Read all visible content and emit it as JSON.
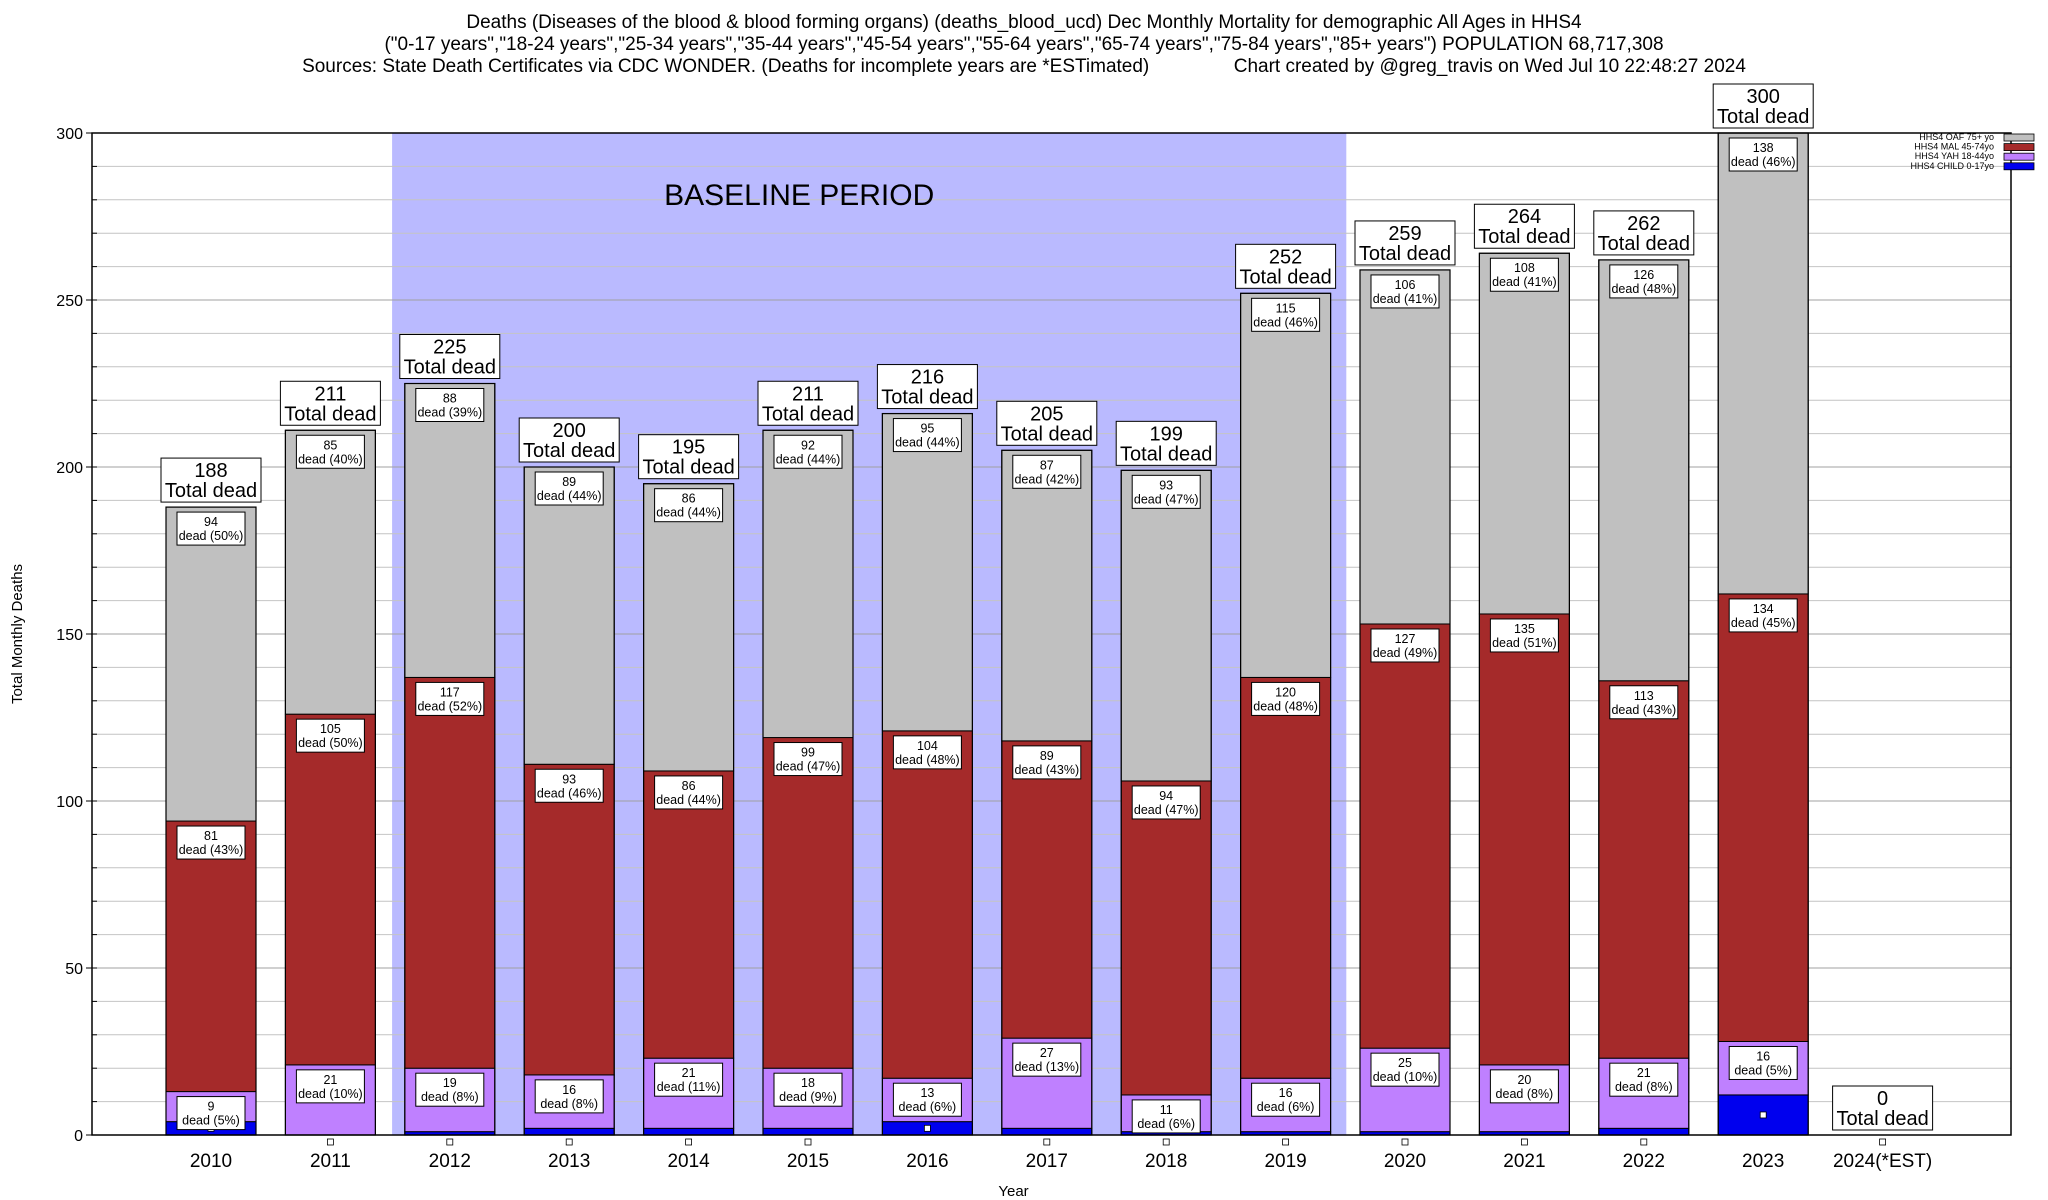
{
  "title": {
    "line1": "Deaths (Diseases of the blood & blood forming organs) (deaths_blood_ucd) Dec Monthly Mortality for demographic All Ages in HHS4",
    "line2": "(\"0-17 years\",\"18-24 years\",\"25-34 years\",\"35-44 years\",\"45-54 years\",\"55-64 years\",\"65-74 years\",\"75-84 years\",\"85+ years\") POPULATION 68,717,308",
    "line3": "Sources: State Death Certificates via CDC WONDER. (Deaths for incomplete years are *ESTimated)                Chart created by @greg_travis on Wed Jul 10 22:48:27 2024"
  },
  "chart_data": {
    "type": "bar",
    "stacked": true,
    "xlabel": "Year",
    "ylabel": "Total Monthly Deaths",
    "ylim": [
      0,
      300
    ],
    "yticks": [
      0,
      50,
      100,
      150,
      200,
      250,
      300
    ],
    "grid": true,
    "legend_position": "top-right",
    "annotation": "BASELINE PERIOD",
    "baseline_years": [
      "2012",
      "2019"
    ],
    "total_suffix": "Total dead",
    "segment_suffix": "dead",
    "categories": [
      "2010",
      "2011",
      "2012",
      "2013",
      "2014",
      "2015",
      "2016",
      "2017",
      "2018",
      "2019",
      "2020",
      "2021",
      "2022",
      "2023",
      "2024(*EST)"
    ],
    "totals": [
      188,
      211,
      225,
      200,
      195,
      211,
      216,
      205,
      199,
      252,
      259,
      264,
      262,
      300,
      0
    ],
    "series": [
      {
        "name": "HHS4 CHILD 0-17yo",
        "color": "#0000ee",
        "values": [
          4,
          0,
          1,
          2,
          2,
          2,
          4,
          2,
          1,
          1,
          1,
          1,
          2,
          12,
          0
        ],
        "labeled": false
      },
      {
        "name": "HHS4 YAH 18-44yo",
        "color": "#bf80ff",
        "values": [
          9,
          21,
          19,
          16,
          21,
          18,
          13,
          27,
          11,
          16,
          25,
          20,
          21,
          16,
          0
        ],
        "pct": [
          5,
          10,
          8,
          8,
          11,
          9,
          6,
          13,
          6,
          6,
          10,
          8,
          8,
          5,
          0
        ],
        "labeled": true
      },
      {
        "name": "HHS4 MAL 45-74yo",
        "color": "#a52a2a",
        "values": [
          81,
          105,
          117,
          93,
          86,
          99,
          104,
          89,
          94,
          120,
          127,
          135,
          113,
          134,
          0
        ],
        "pct": [
          43,
          50,
          52,
          46,
          44,
          47,
          48,
          43,
          47,
          48,
          49,
          51,
          43,
          45,
          0
        ],
        "labeled": true
      },
      {
        "name": "HHS4 OAF 75+ yo",
        "color": "#c0c0c0",
        "values": [
          94,
          85,
          88,
          89,
          86,
          92,
          95,
          87,
          93,
          115,
          106,
          108,
          126,
          138,
          0
        ],
        "pct": [
          50,
          40,
          39,
          44,
          44,
          44,
          44,
          42,
          47,
          46,
          41,
          41,
          48,
          46,
          0
        ],
        "labeled": true
      }
    ],
    "legend_order": [
      "HHS4 OAF 75+ yo",
      "HHS4 MAL 45-74yo",
      "HHS4 YAH 18-44yo",
      "HHS4 CHILD 0-17yo"
    ],
    "baseline_color": "#babaff"
  }
}
